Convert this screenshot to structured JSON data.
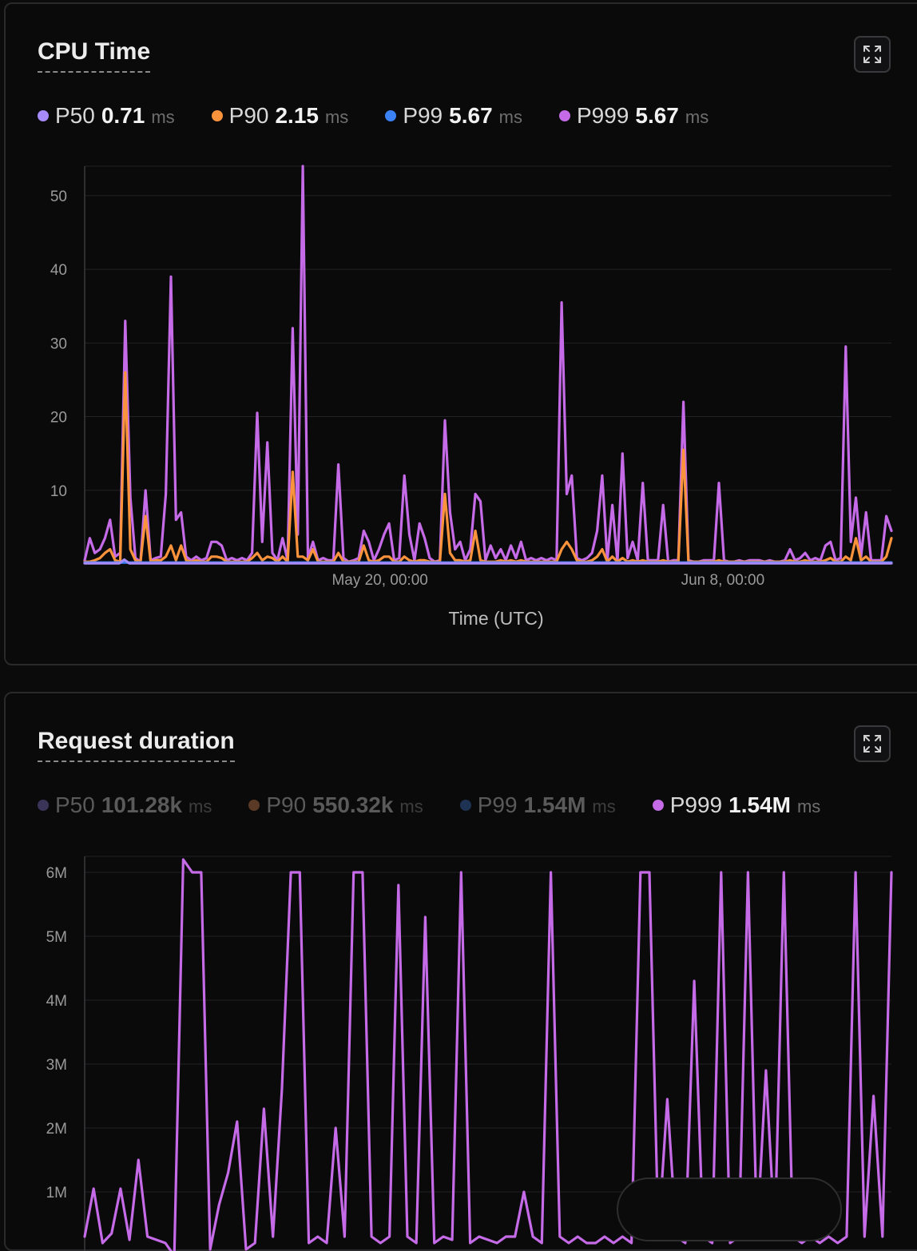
{
  "panels": [
    {
      "title": "CPU Time",
      "legend": [
        {
          "name": "P50",
          "value": "0.71",
          "unit": "ms",
          "color": "#a78bfa",
          "active": true
        },
        {
          "name": "P90",
          "value": "2.15",
          "unit": "ms",
          "color": "#fb923c",
          "active": true
        },
        {
          "name": "P99",
          "value": "5.67",
          "unit": "ms",
          "color": "#3b82f6",
          "active": true
        },
        {
          "name": "P999",
          "value": "5.67",
          "unit": "ms",
          "color": "#c56be8",
          "active": true
        }
      ]
    },
    {
      "title": "Request duration",
      "legend": [
        {
          "name": "P50",
          "value": "101.28k",
          "unit": "ms",
          "color": "#3b3459",
          "active": false
        },
        {
          "name": "P90",
          "value": "550.32k",
          "unit": "ms",
          "color": "#5a3a26",
          "active": false
        },
        {
          "name": "P99",
          "value": "1.54M",
          "unit": "ms",
          "color": "#1e3354",
          "active": false
        },
        {
          "name": "P999",
          "value": "1.54M",
          "unit": "ms",
          "color": "#c56be8",
          "active": true
        }
      ]
    }
  ],
  "chart_data": [
    {
      "type": "line",
      "title": "CPU Time",
      "xlabel": "Time (UTC)",
      "ylabel": "",
      "ylim": [
        0,
        54
      ],
      "yticks": [
        10,
        20,
        30,
        40,
        50
      ],
      "ytick_labels": [
        "10",
        "20",
        "30",
        "40",
        "50"
      ],
      "xticks": [
        {
          "label": "May 20, 00:00",
          "frac": 0.366
        },
        {
          "label": "Jun 8, 00:00",
          "frac": 0.791
        }
      ],
      "grid": true,
      "series": [
        {
          "name": "P999",
          "color": "#c56be8",
          "values": [
            0.5,
            3.5,
            1.5,
            2.0,
            3.5,
            6.0,
            1.0,
            1.5,
            33.0,
            9.0,
            0.8,
            0.3,
            10.0,
            0.5,
            0.8,
            1.0,
            9.5,
            39.0,
            6.0,
            7.0,
            1.0,
            0.5,
            1.0,
            0.5,
            0.8,
            3.0,
            3.0,
            2.5,
            0.5,
            0.8,
            0.5,
            0.8,
            0.5,
            1.5,
            20.5,
            3.0,
            16.5,
            1.5,
            0.5,
            3.5,
            0.5,
            32.0,
            4.0,
            54.0,
            0.8,
            3.0,
            0.5,
            0.8,
            0.5,
            0.5,
            13.5,
            0.8,
            0.3,
            0.5,
            0.8,
            4.5,
            3.0,
            0.5,
            2.0,
            4.0,
            5.5,
            0.5,
            0.8,
            12.0,
            4.0,
            0.5,
            5.5,
            3.5,
            0.8,
            0.3,
            0.5,
            19.5,
            7.0,
            2.0,
            3.0,
            0.5,
            2.0,
            9.5,
            8.5,
            0.5,
            2.5,
            0.8,
            2.0,
            0.5,
            2.5,
            0.8,
            3.0,
            0.5,
            0.8,
            0.5,
            0.8,
            0.5,
            0.8,
            0.5,
            35.5,
            9.5,
            12.0,
            0.8,
            0.5,
            0.8,
            1.5,
            4.5,
            12.0,
            0.5,
            8.0,
            0.3,
            15.0,
            0.8,
            3.0,
            0.5,
            11.0,
            0.5,
            0.5,
            0.5,
            8.0,
            0.3,
            0.5,
            0.5,
            22.0,
            0.5,
            0.3,
            0.3,
            0.5,
            0.5,
            0.5,
            11.0,
            0.5,
            0.3,
            0.3,
            0.5,
            0.3,
            0.5,
            0.5,
            0.5,
            0.3,
            0.5,
            0.3,
            0.3,
            0.5,
            2.0,
            0.5,
            0.8,
            1.5,
            0.5,
            0.8,
            0.5,
            2.5,
            3.0,
            0.5,
            0.8,
            29.5,
            3.0,
            9.0,
            1.0,
            7.0,
            0.5,
            0.5,
            0.5,
            6.5,
            4.5
          ]
        },
        {
          "name": "P90",
          "color": "#fb923c",
          "values": [
            0.3,
            0.3,
            0.5,
            0.8,
            1.5,
            2.0,
            0.5,
            0.3,
            26.0,
            2.0,
            0.5,
            0.3,
            6.5,
            0.3,
            0.5,
            0.5,
            1.0,
            2.5,
            0.5,
            2.5,
            0.5,
            0.3,
            0.5,
            0.3,
            0.3,
            1.0,
            1.0,
            0.8,
            0.3,
            0.3,
            0.3,
            0.3,
            0.3,
            0.8,
            1.5,
            0.5,
            1.0,
            0.8,
            0.3,
            1.0,
            0.3,
            12.5,
            1.0,
            1.0,
            0.5,
            2.0,
            0.3,
            0.3,
            0.3,
            0.3,
            1.5,
            0.3,
            0.3,
            0.3,
            0.3,
            2.5,
            0.5,
            0.3,
            0.5,
            1.0,
            1.0,
            0.3,
            0.3,
            1.0,
            0.5,
            0.3,
            0.5,
            0.5,
            0.3,
            0.3,
            0.3,
            9.5,
            1.5,
            0.5,
            0.5,
            0.3,
            0.5,
            4.5,
            0.5,
            0.3,
            0.3,
            0.3,
            0.5,
            0.3,
            0.5,
            0.3,
            0.5,
            0.3,
            0.3,
            0.3,
            0.3,
            0.3,
            0.3,
            0.3,
            2.0,
            3.0,
            2.0,
            0.5,
            0.3,
            0.3,
            0.5,
            1.0,
            2.0,
            0.3,
            1.0,
            0.3,
            0.8,
            0.3,
            0.5,
            0.3,
            0.5,
            0.3,
            0.3,
            0.3,
            0.5,
            0.3,
            0.3,
            0.3,
            15.5,
            0.3,
            0.3,
            0.3,
            0.3,
            0.3,
            0.3,
            0.5,
            0.3,
            0.3,
            0.3,
            0.3,
            0.3,
            0.3,
            0.3,
            0.3,
            0.3,
            0.3,
            0.3,
            0.3,
            0.3,
            0.5,
            0.3,
            0.3,
            0.5,
            0.3,
            0.3,
            0.3,
            0.5,
            0.8,
            0.3,
            0.3,
            1.0,
            0.5,
            3.5,
            0.5,
            1.0,
            0.3,
            0.3,
            0.3,
            1.0,
            3.5
          ]
        },
        {
          "name": "P99",
          "color": "#3b82f6",
          "values": [
            0.2,
            0.2,
            0.2,
            0.2,
            0.2,
            0.2,
            0.2,
            0.2,
            0.2,
            0.2,
            0.2,
            0.2,
            0.2,
            0.2,
            0.2,
            0.2,
            0.2,
            0.2,
            0.2,
            0.2,
            0.2,
            0.2,
            0.2,
            0.2,
            0.2,
            0.2,
            0.2,
            0.2,
            0.2,
            0.2,
            0.2,
            0.2,
            0.2,
            0.2,
            0.2,
            0.2,
            0.2,
            0.2,
            0.2,
            0.2,
            0.2,
            0.2,
            0.2,
            0.2,
            0.2,
            0.2,
            0.2,
            0.2,
            0.2,
            0.2,
            0.2,
            0.2,
            0.2,
            0.2,
            0.2,
            0.2,
            0.2,
            0.2,
            0.2,
            0.2,
            0.2,
            0.2,
            0.2,
            0.2,
            0.2,
            0.2,
            0.2,
            0.2,
            0.2,
            0.2,
            0.2,
            0.2,
            0.2,
            0.2,
            0.2,
            0.2,
            0.2,
            0.2,
            0.2,
            0.2,
            0.2,
            0.2,
            0.2,
            0.2,
            0.2,
            0.2,
            0.2,
            0.2,
            0.2,
            0.2,
            0.2,
            0.2,
            0.2,
            0.2,
            0.2,
            0.2,
            0.2,
            0.2,
            0.2,
            0.2,
            0.2,
            0.2,
            0.2,
            0.2,
            0.2,
            0.2,
            0.2,
            0.2,
            0.2,
            0.2,
            0.2,
            0.2,
            0.2,
            0.2,
            0.2,
            0.2,
            0.2,
            0.2,
            0.2,
            0.2,
            0.2,
            0.2,
            0.2,
            0.2,
            0.2,
            0.2,
            0.2,
            0.2,
            0.2,
            0.2,
            0.2,
            0.2,
            0.2,
            0.2,
            0.2,
            0.2,
            0.2,
            0.2,
            0.2,
            0.2,
            0.2,
            0.2,
            0.2,
            0.2,
            0.2,
            0.2,
            0.2,
            0.2,
            0.2,
            0.2,
            0.2,
            0.2,
            0.2,
            0.2,
            0.2,
            0.2,
            0.2,
            0.2,
            0.2,
            0.2,
            0.2,
            0.2
          ]
        },
        {
          "name": "P50",
          "color": "#a78bfa",
          "values": [
            0.1,
            0.1,
            0.1,
            0.1,
            0.1,
            0.1,
            0.1,
            0.1,
            0.6,
            0.1,
            0.1,
            0.1,
            0.1,
            0.1,
            0.1,
            0.1,
            0.1,
            0.1,
            0.1,
            0.1,
            0.1,
            0.1,
            0.1,
            0.1,
            0.1,
            0.1,
            0.1,
            0.1,
            0.1,
            0.1,
            0.1,
            0.1,
            0.1,
            0.1,
            0.1,
            0.1,
            0.1,
            0.1,
            0.1,
            0.1,
            0.1,
            0.1,
            0.1,
            0.1,
            0.1,
            0.1,
            0.1,
            0.1,
            0.1,
            0.1,
            0.1,
            0.1,
            0.1,
            0.1,
            0.1,
            0.1,
            0.1,
            0.1,
            0.1,
            0.1,
            0.1,
            0.1,
            0.1,
            0.1,
            0.1,
            0.1,
            0.1,
            0.1,
            0.1,
            0.1,
            0.1,
            0.1,
            0.1,
            0.1,
            0.1,
            0.1,
            0.1,
            0.1,
            0.1,
            0.1,
            0.1,
            0.1,
            0.1,
            0.1,
            0.1,
            0.1,
            0.1,
            0.1,
            0.1,
            0.1,
            0.1,
            0.1,
            0.1,
            0.1,
            0.1,
            0.1,
            0.1,
            0.1,
            0.1,
            0.1,
            0.1,
            0.1,
            0.1,
            0.1,
            0.1,
            0.1,
            0.1,
            0.1,
            0.1,
            0.1,
            0.1,
            0.1,
            0.1,
            0.1,
            0.1,
            0.1,
            0.1,
            0.1,
            0.1,
            0.1,
            0.1,
            0.1,
            0.1,
            0.1,
            0.1,
            0.1,
            0.1,
            0.1,
            0.1,
            0.1,
            0.1,
            0.1,
            0.1,
            0.1,
            0.1,
            0.1,
            0.1,
            0.1,
            0.1,
            0.1,
            0.1,
            0.1,
            0.1,
            0.1,
            0.1,
            0.1,
            0.1,
            0.1,
            0.1,
            0.1,
            0.1,
            0.1,
            0.1,
            0.1,
            0.1,
            0.1,
            0.1,
            0.1,
            0.1,
            0.1,
            0.1,
            0.1,
            0.1,
            0.1
          ]
        }
      ]
    },
    {
      "type": "line",
      "title": "Request duration",
      "xlabel": "",
      "ylabel": "",
      "ylim": [
        0,
        6250000
      ],
      "yticks": [
        1000000,
        2000000,
        3000000,
        4000000,
        5000000,
        6000000
      ],
      "ytick_labels": [
        "1M",
        "2M",
        "3M",
        "4M",
        "5M",
        "6M"
      ],
      "grid": true,
      "series": [
        {
          "name": "P90",
          "color": "#5a3a26",
          "values": [
            0,
            0,
            0,
            0,
            0,
            0,
            0,
            0,
            0,
            0,
            0,
            0,
            0,
            0,
            0,
            0,
            0,
            0,
            0,
            0,
            0,
            0,
            0,
            0,
            0,
            0,
            0,
            0,
            0,
            0,
            0,
            0,
            0,
            0,
            0,
            0,
            0,
            0,
            0,
            0,
            0,
            0,
            0,
            0,
            0,
            0,
            0,
            0,
            0,
            0,
            0,
            0,
            0,
            0,
            0,
            0,
            0,
            0,
            0,
            0,
            0,
            0,
            0,
            0,
            0,
            0,
            0,
            0,
            0,
            0,
            0,
            0,
            0,
            0,
            0,
            0,
            0,
            0,
            0,
            0,
            0,
            0,
            0,
            0,
            0,
            0,
            0,
            0,
            0,
            0,
            0,
            0,
            0,
            0,
            0,
            0,
            0,
            0,
            0,
            0,
            0,
            0,
            0,
            0,
            0,
            0,
            0,
            0,
            0,
            0,
            0,
            0,
            0,
            0,
            0,
            0,
            0,
            0,
            0,
            0,
            0,
            0,
            0,
            0,
            0,
            0,
            0,
            0,
            0,
            0,
            0,
            0,
            0,
            0,
            0,
            0,
            0,
            0,
            0,
            0,
            0,
            0,
            0,
            0,
            0,
            0,
            0,
            0,
            0,
            0,
            0,
            0,
            0,
            0,
            0,
            0,
            0,
            0,
            0,
            0,
            0,
            0,
            0,
            0,
            0,
            0,
            0,
            0,
            0,
            0,
            0,
            0,
            0,
            0,
            0,
            0,
            0,
            0,
            0,
            0,
            0,
            0,
            0,
            0,
            0,
            0,
            0,
            0,
            0,
            0
          ]
        },
        {
          "name": "P999",
          "color": "#c56be8",
          "values": [
            300000,
            1050000,
            200000,
            350000,
            1050000,
            250000,
            1500000,
            300000,
            250000,
            200000,
            0,
            6200000,
            6000000,
            6000000,
            100000,
            800000,
            1300000,
            2100000,
            100000,
            200000,
            2300000,
            300000,
            2600000,
            6000000,
            6000000,
            200000,
            300000,
            200000,
            2000000,
            300000,
            6000000,
            6000000,
            300000,
            200000,
            300000,
            5800000,
            300000,
            200000,
            5300000,
            200000,
            300000,
            250000,
            6000000,
            200000,
            300000,
            250000,
            200000,
            300000,
            300000,
            1000000,
            300000,
            200000,
            6000000,
            300000,
            200000,
            300000,
            200000,
            200000,
            300000,
            200000,
            300000,
            200000,
            6000000,
            6000000,
            300000,
            2450000,
            300000,
            200000,
            4300000,
            300000,
            200000,
            6000000,
            200000,
            300000,
            6000000,
            300000,
            2900000,
            300000,
            6000000,
            300000,
            200000,
            300000,
            200000,
            300000,
            200000,
            300000,
            6000000,
            300000,
            2500000,
            300000,
            6000000
          ]
        }
      ]
    }
  ]
}
